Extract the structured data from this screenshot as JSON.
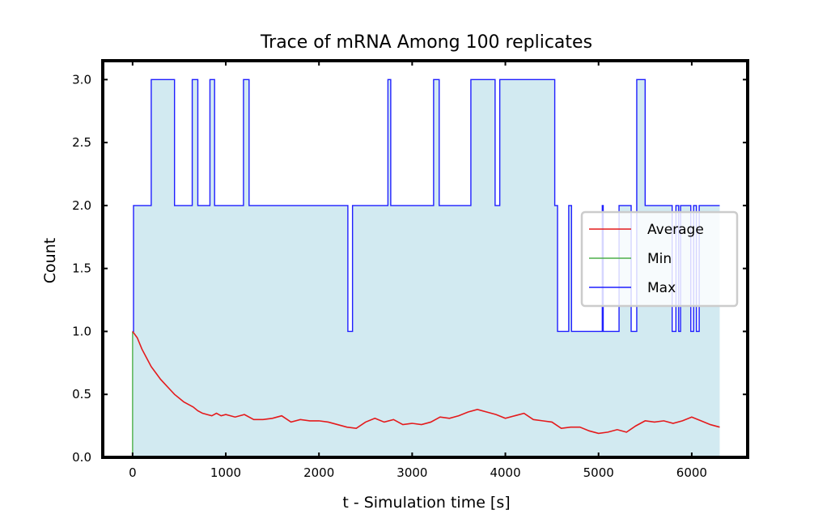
{
  "chart_data": {
    "type": "line",
    "title": "Trace of mRNA Among 100 replicates",
    "xlabel": "t - Simulation time [s]",
    "ylabel": "Count",
    "xlim": [
      -320,
      6600
    ],
    "ylim": [
      0,
      3.15
    ],
    "xticks": [
      0,
      1000,
      2000,
      3000,
      4000,
      5000,
      6000
    ],
    "xtick_labels": [
      "0",
      "1000",
      "2000",
      "3000",
      "4000",
      "5000",
      "6000"
    ],
    "yticks": [
      0,
      0.5,
      1,
      1.5,
      2,
      2.5,
      3
    ],
    "ytick_labels": [
      "0.0",
      "0.5",
      "1.0",
      "1.5",
      "2.0",
      "2.5",
      "3.0"
    ],
    "grid": false,
    "legend": {
      "position": "center-right",
      "entries": [
        "Average",
        "Min",
        "Max"
      ]
    },
    "fill_between": {
      "lower": "Min",
      "upper": "Max",
      "color": "#add8e6"
    },
    "series": [
      {
        "name": "Average",
        "color": "#e41a1c",
        "x": [
          0,
          50,
          100,
          150,
          200,
          250,
          300,
          350,
          400,
          450,
          500,
          550,
          600,
          650,
          700,
          750,
          800,
          850,
          900,
          950,
          1000,
          1100,
          1200,
          1300,
          1400,
          1500,
          1600,
          1700,
          1800,
          1900,
          2000,
          2100,
          2200,
          2300,
          2400,
          2500,
          2600,
          2700,
          2800,
          2900,
          3000,
          3100,
          3200,
          3300,
          3400,
          3500,
          3600,
          3700,
          3800,
          3900,
          4000,
          4100,
          4200,
          4300,
          4400,
          4500,
          4600,
          4700,
          4800,
          4900,
          5000,
          5100,
          5200,
          5300,
          5400,
          5500,
          5600,
          5700,
          5800,
          5900,
          6000,
          6100,
          6200,
          6300
        ],
        "values": [
          1.0,
          0.95,
          0.86,
          0.79,
          0.72,
          0.67,
          0.62,
          0.58,
          0.54,
          0.5,
          0.47,
          0.44,
          0.42,
          0.4,
          0.37,
          0.35,
          0.34,
          0.33,
          0.35,
          0.33,
          0.34,
          0.32,
          0.34,
          0.3,
          0.3,
          0.31,
          0.33,
          0.28,
          0.3,
          0.29,
          0.29,
          0.28,
          0.26,
          0.24,
          0.23,
          0.28,
          0.31,
          0.28,
          0.3,
          0.26,
          0.27,
          0.26,
          0.28,
          0.32,
          0.31,
          0.33,
          0.36,
          0.38,
          0.36,
          0.34,
          0.31,
          0.33,
          0.35,
          0.3,
          0.29,
          0.28,
          0.23,
          0.24,
          0.24,
          0.21,
          0.19,
          0.2,
          0.22,
          0.2,
          0.25,
          0.29,
          0.28,
          0.29,
          0.27,
          0.29,
          0.32,
          0.29,
          0.26,
          0.24
        ]
      },
      {
        "name": "Min",
        "color": "#4daf4a",
        "x": [
          0,
          0,
          6300
        ],
        "values": [
          1.0,
          0.0,
          0.0
        ]
      },
      {
        "name": "Max",
        "color": "#1f1fff",
        "step": true,
        "x": [
          0,
          10,
          200,
          450,
          640,
          700,
          830,
          880,
          1190,
          1250,
          2310,
          2360,
          2740,
          2770,
          3230,
          3290,
          3630,
          3890,
          3940,
          4020,
          4530,
          4560,
          4680,
          4710,
          5040,
          5050,
          5220,
          5350,
          5410,
          5500,
          5560,
          5790,
          5830,
          5860,
          5880,
          5900,
          5990,
          6020,
          6050,
          6080,
          6300
        ],
        "values": [
          1,
          2,
          3,
          2,
          3,
          2,
          3,
          2,
          3,
          2,
          1,
          2,
          3,
          2,
          3,
          2,
          3,
          2,
          3,
          3,
          2,
          1,
          2,
          1,
          2,
          1,
          2,
          1,
          3,
          2,
          2,
          1,
          2,
          1,
          2,
          2,
          1,
          2,
          1,
          2,
          2
        ]
      }
    ]
  }
}
